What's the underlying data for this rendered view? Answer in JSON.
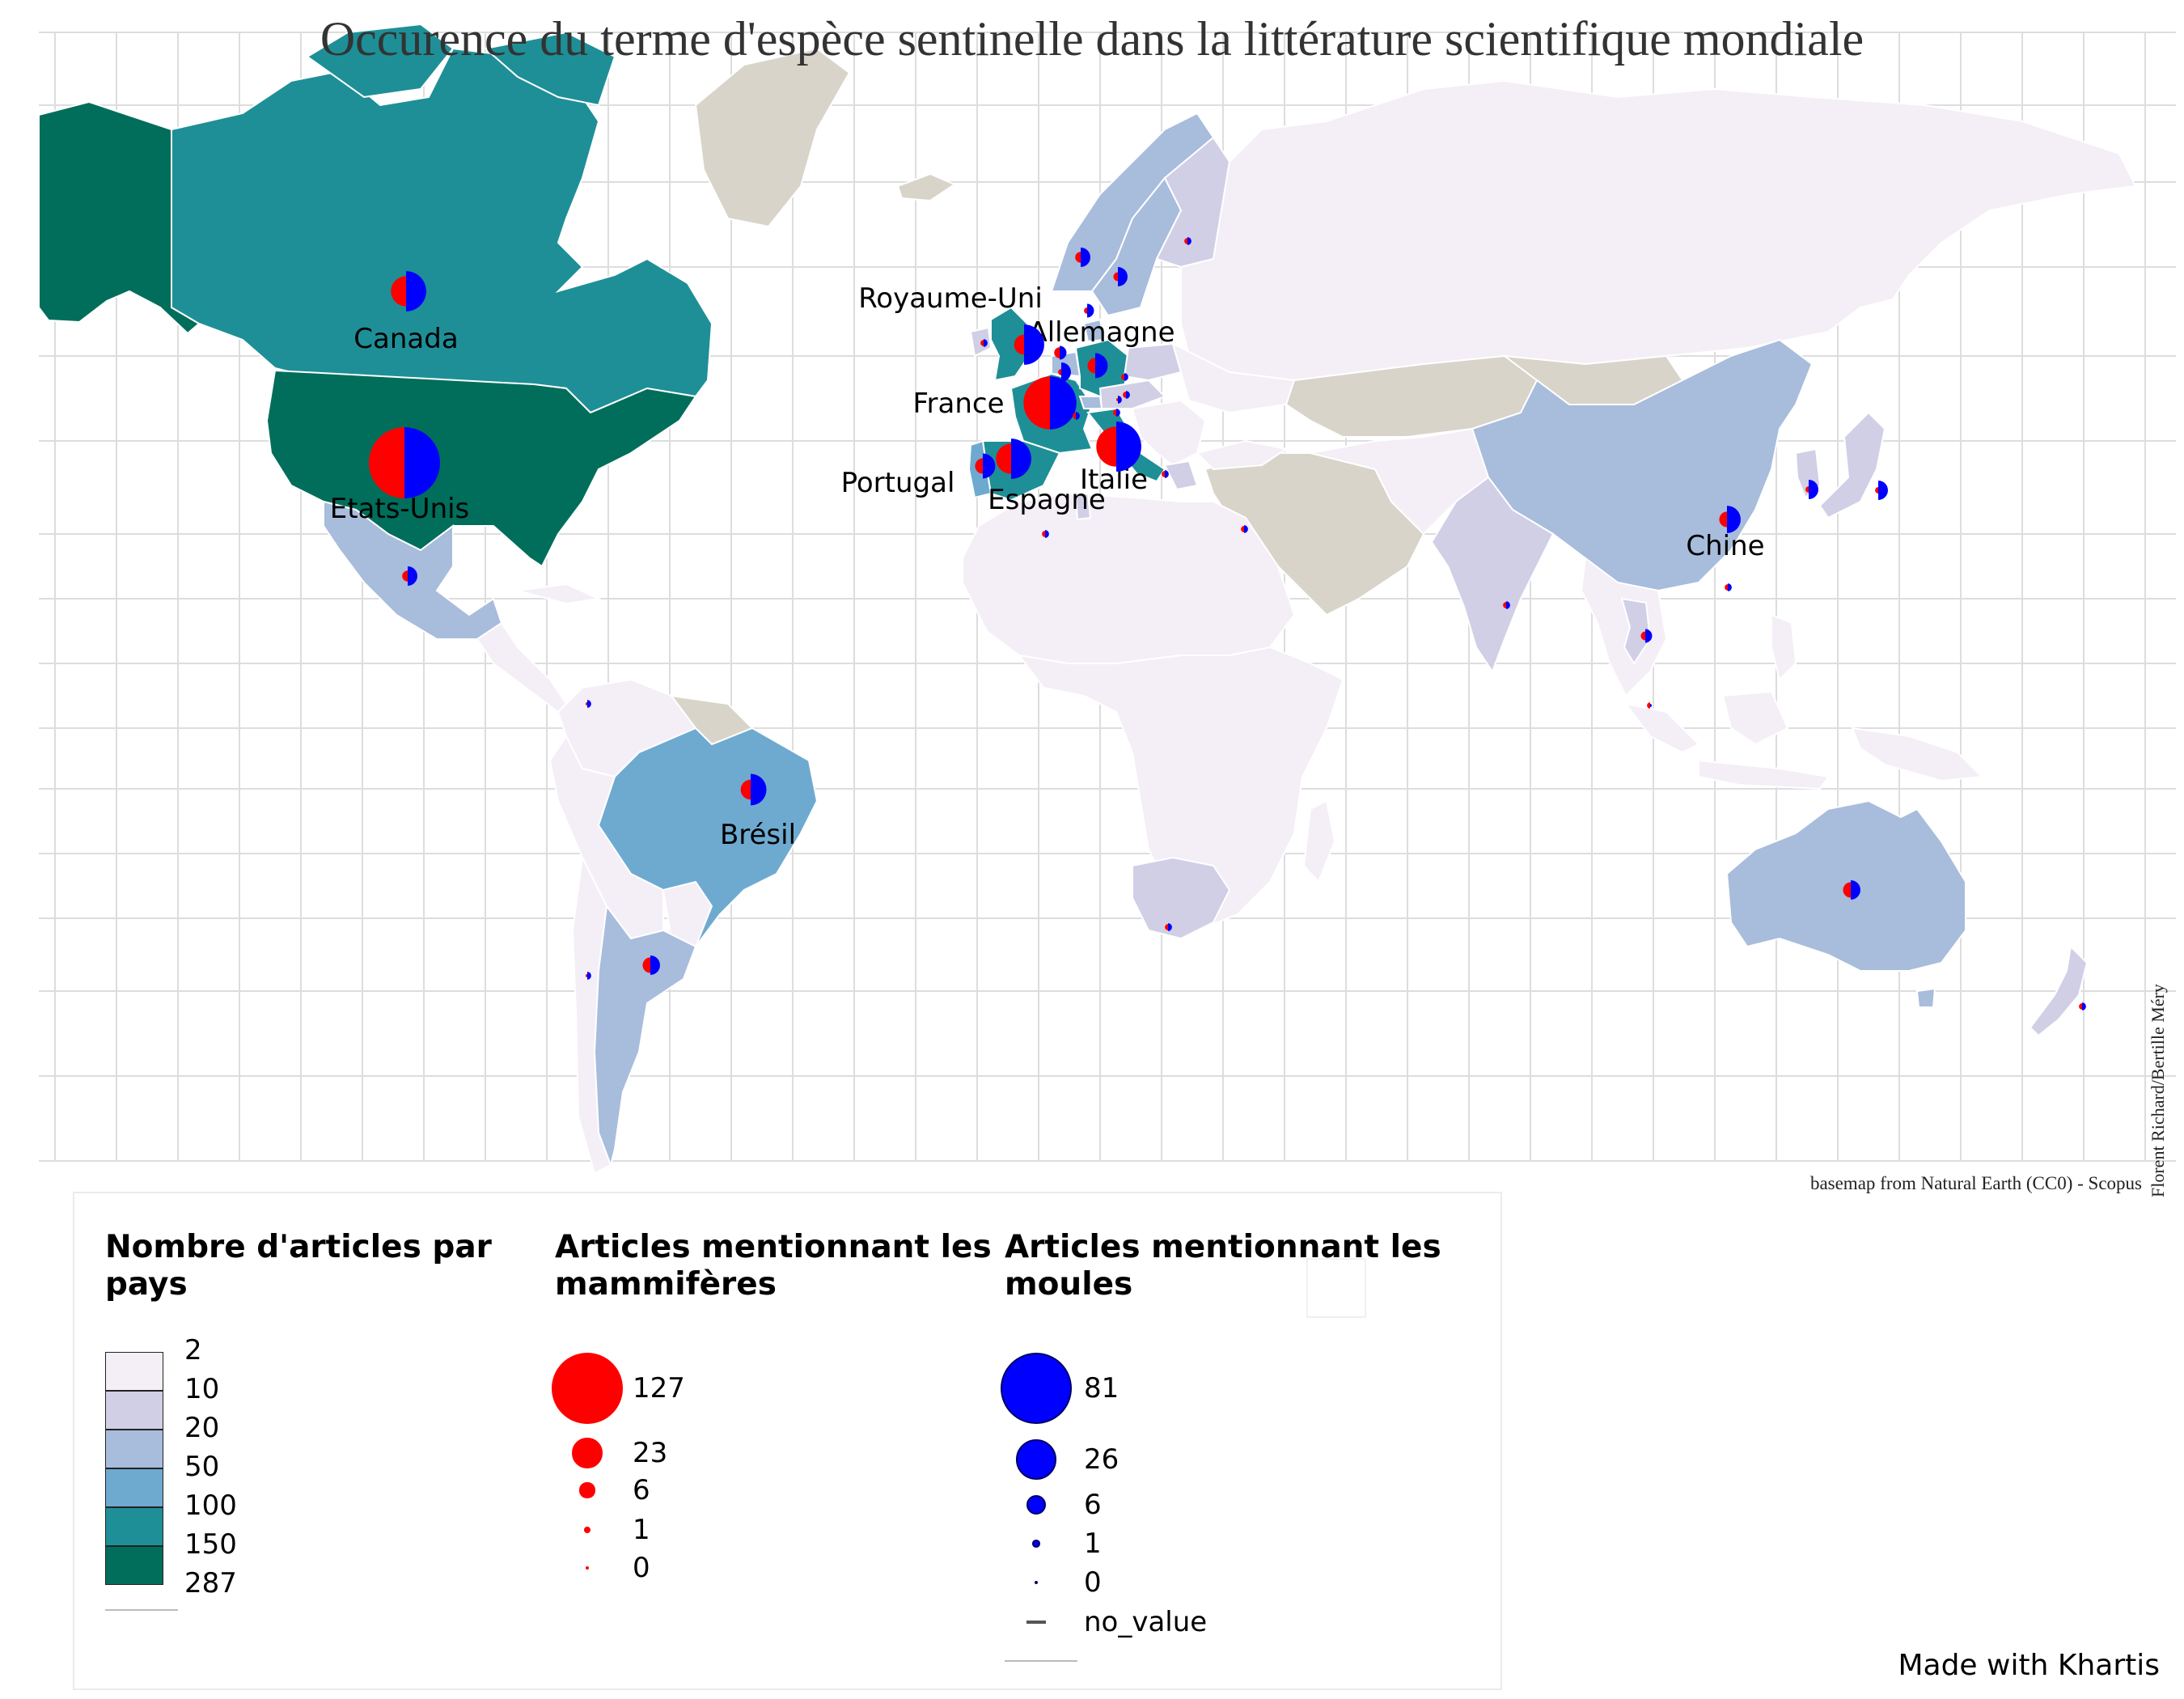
{
  "title": "Occurence du terme d'espèce sentinelle dans la littérature scientifique mondiale",
  "credit": "Florent Richard/Bertille Méry",
  "source": "basemap from Natural Earth (CC0) - Scopus",
  "made_with": "Made with Khartis",
  "colors": {
    "mammals": "#ff0000",
    "mussels": "#0000ff",
    "no_data_land": "#d8d4ca",
    "grid": "#dddddd",
    "classes": [
      "#f4eef7",
      "#d0cfe6",
      "#a8bcdc",
      "#6eaad0",
      "#1e8f97",
      "#006e5a"
    ]
  },
  "countries": [
    {
      "name": "Etats-Unis",
      "cls": 5,
      "mammals": 127,
      "mussels": 81,
      "labeled": true
    },
    {
      "name": "Canada",
      "cls": 4,
      "mammals": 23,
      "mussels": 26,
      "labeled": true
    },
    {
      "name": "France",
      "cls": 4,
      "mammals": 70,
      "mussels": 45,
      "labeled": true
    },
    {
      "name": "Italie",
      "cls": 4,
      "mammals": 40,
      "mussels": 40,
      "labeled": true
    },
    {
      "name": "Espagne",
      "cls": 4,
      "mammals": 23,
      "mussels": 26,
      "labeled": true
    },
    {
      "name": "Royaume-Uni",
      "cls": 4,
      "mammals": 10,
      "mussels": 26,
      "labeled": true
    },
    {
      "name": "Allemagne",
      "cls": 4,
      "mammals": 6,
      "mussels": 10,
      "labeled": true
    },
    {
      "name": "Portugal",
      "cls": 3,
      "mammals": 6,
      "mussels": 10,
      "labeled": true
    },
    {
      "name": "Chine",
      "cls": 2,
      "mammals": 6,
      "mussels": 12,
      "labeled": true
    },
    {
      "name": "Brésil",
      "cls": 3,
      "mammals": 10,
      "mussels": 16,
      "labeled": true
    },
    {
      "name": "Australie",
      "cls": 2,
      "mammals": 6,
      "mussels": 6,
      "labeled": false
    },
    {
      "name": "Argentine",
      "cls": 2,
      "mammals": 6,
      "mussels": 6,
      "labeled": false
    },
    {
      "name": "Mexique",
      "cls": 2,
      "mammals": 3,
      "mussels": 6,
      "labeled": false
    },
    {
      "name": "Japon",
      "cls": 1,
      "mammals": 1,
      "mussels": 6,
      "labeled": false
    },
    {
      "name": "Corée du Sud",
      "cls": 1,
      "mammals": 1,
      "mussels": 6,
      "labeled": false
    },
    {
      "name": "Norvège",
      "cls": 2,
      "mammals": 3,
      "mussels": 6,
      "labeled": false
    },
    {
      "name": "Suède",
      "cls": 2,
      "mammals": 2,
      "mussels": 6,
      "labeled": false
    },
    {
      "name": "Finlande",
      "cls": 1,
      "mammals": 1,
      "mussels": 1,
      "labeled": false
    },
    {
      "name": "Danemark",
      "cls": 2,
      "mammals": 1,
      "mussels": 3,
      "labeled": false
    },
    {
      "name": "Irlande",
      "cls": 1,
      "mammals": 1,
      "mussels": 1,
      "labeled": false
    },
    {
      "name": "Belgique",
      "cls": 2,
      "mammals": 3,
      "mussels": 3,
      "labeled": false
    },
    {
      "name": "Pays-Bas",
      "cls": 2,
      "mammals": 1,
      "mussels": 6,
      "labeled": false
    },
    {
      "name": "Pologne",
      "cls": 1,
      "mammals": 1,
      "mussels": 1,
      "labeled": false
    },
    {
      "name": "Tchéquie",
      "cls": 1,
      "mammals": 1,
      "mussels": 1,
      "labeled": false
    },
    {
      "name": "Autriche",
      "cls": 1,
      "mammals": 1,
      "mussels": 1,
      "labeled": false
    },
    {
      "name": "Suisse",
      "cls": 2,
      "mammals": 1,
      "mussels": 1,
      "labeled": false
    },
    {
      "name": "Croatie",
      "cls": 1,
      "mammals": 0,
      "mussels": 1,
      "labeled": false
    },
    {
      "name": "Grèce",
      "cls": 1,
      "mammals": 1,
      "mussels": 1,
      "labeled": false
    },
    {
      "name": "Turquie",
      "cls": 0,
      "mammals": 1,
      "mussels": 1,
      "labeled": false
    },
    {
      "name": "Tunisie",
      "cls": 1,
      "mammals": 1,
      "mussels": 1,
      "labeled": false
    },
    {
      "name": "Inde",
      "cls": 1,
      "mammals": 1,
      "mussels": 1,
      "labeled": false
    },
    {
      "name": "Thaïlande",
      "cls": 1,
      "mammals": 2,
      "mussels": 3,
      "labeled": false
    },
    {
      "name": "Taïwan",
      "cls": 1,
      "mammals": 1,
      "mussels": 1,
      "labeled": false
    },
    {
      "name": "Malaisie",
      "cls": 0,
      "mammals": 1,
      "mussels": 0,
      "labeled": false
    },
    {
      "name": "Afrique du Sud",
      "cls": 1,
      "mammals": 1,
      "mussels": 1,
      "labeled": false
    },
    {
      "name": "Nouvelle-Zélande",
      "cls": 1,
      "mammals": 1,
      "mussels": 1,
      "labeled": false
    },
    {
      "name": "Colombie",
      "cls": 0,
      "mammals": 0,
      "mussels": 1,
      "labeled": false
    },
    {
      "name": "Chili",
      "cls": 0,
      "mammals": 0,
      "mussels": 1,
      "labeled": false
    }
  ],
  "legend": {
    "choropleth": {
      "title_line1": "Nombre d'articles par",
      "title_line2": "pays",
      "breaks": [
        "2",
        "10",
        "20",
        "50",
        "100",
        "150",
        "287"
      ]
    },
    "mammals": {
      "title_line1": "Articles mentionnant les",
      "title_line2": "mammifères",
      "values": [
        "127",
        "23",
        "6",
        "1",
        "0"
      ]
    },
    "mussels": {
      "title_line1": "Articles mentionnant les",
      "title_line2": "moules",
      "values": [
        "81",
        "26",
        "6",
        "1",
        "0"
      ],
      "no_value": "no_value"
    }
  }
}
